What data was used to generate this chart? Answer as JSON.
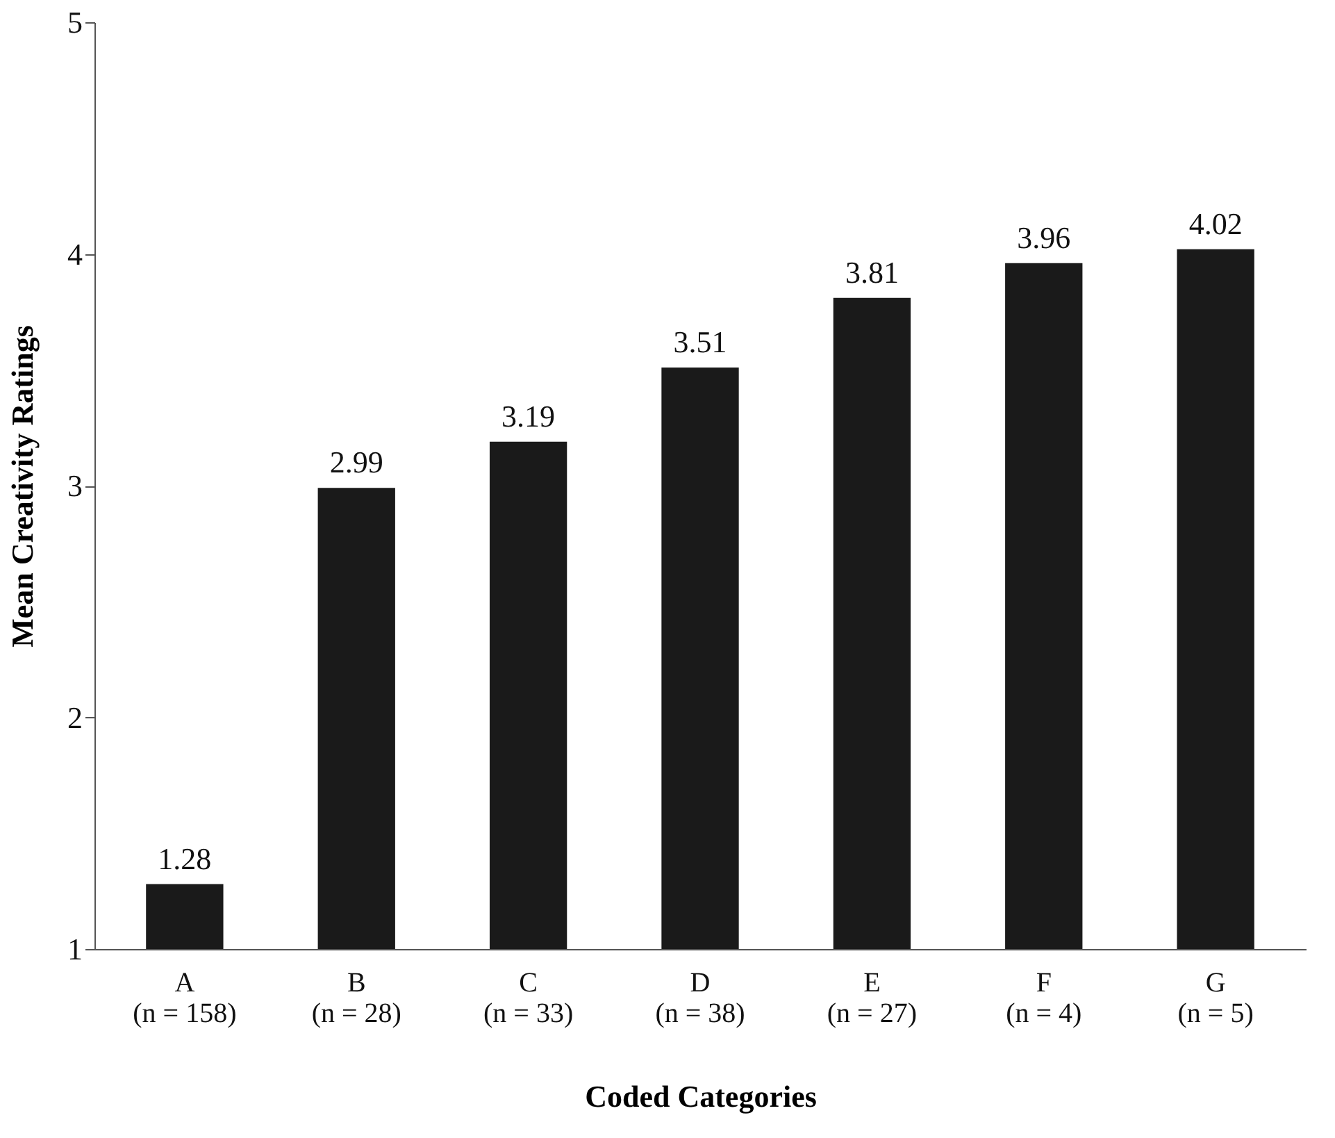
{
  "chart_data": {
    "type": "bar",
    "categories": [
      "A\n(n = 158)",
      "B\n(n = 28)",
      "C\n(n = 33)",
      "D\n(n = 38)",
      "E\n(n = 27)",
      "F\n(n = 4)",
      "G\n(n = 5)"
    ],
    "values": [
      1.28,
      2.99,
      3.19,
      3.51,
      3.81,
      3.96,
      4.02
    ],
    "color": "#1a1a1a",
    "xlabel": "Coded Categories",
    "ylabel": "Mean Creativity Ratings",
    "ylim": [
      1,
      5
    ],
    "yticks": [
      1,
      2,
      3,
      4,
      5
    ],
    "data_labels": true,
    "grid": false
  }
}
